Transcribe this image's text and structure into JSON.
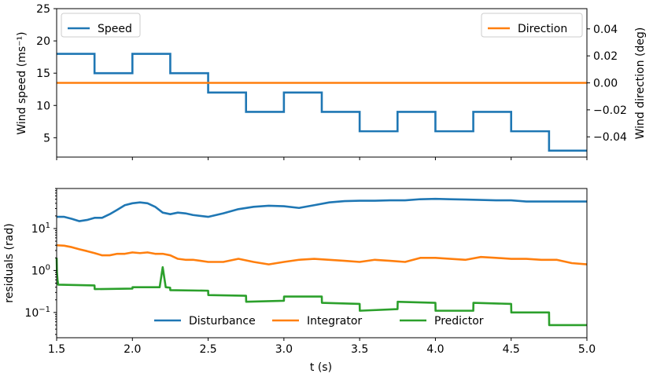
{
  "colors": {
    "blue": "#1f77b4",
    "orange": "#ff7f0e",
    "green": "#2ca02c",
    "axes": "#000000",
    "background": "#ffffff"
  },
  "chart_data": [
    {
      "type": "line",
      "title": "",
      "xlabel": "",
      "ylabel": "Wind speed (ms⁻¹)",
      "y2label": "Wind direction (deg)",
      "xlim": [
        1.5,
        5.0
      ],
      "ylim": [
        2,
        25
      ],
      "y2lim": [
        -0.055,
        0.055
      ],
      "grid": false,
      "xticks": [
        1.5,
        2.0,
        2.5,
        3.0,
        3.5,
        4.0,
        4.5,
        5.0
      ],
      "yticks": [
        5,
        10,
        15,
        20,
        25
      ],
      "y2ticks": [
        -0.04,
        -0.02,
        0.0,
        0.02,
        0.04
      ],
      "ytick_labels": [
        "5",
        "10",
        "15",
        "20",
        "25"
      ],
      "y2tick_labels": [
        "−0.04",
        "−0.02",
        "0.00",
        "0.02",
        "0.04"
      ],
      "legend_left": {
        "placement": "upper left",
        "entries": [
          "Speed"
        ]
      },
      "legend_right": {
        "placement": "upper right",
        "entries": [
          "Direction"
        ]
      },
      "series": [
        {
          "name": "Speed",
          "axis": "left",
          "color": "#1f77b4",
          "shape": "steps",
          "x": [
            1.5,
            1.75,
            2.0,
            2.25,
            2.5,
            2.75,
            3.0,
            3.25,
            3.5,
            3.75,
            4.0,
            4.25,
            4.5,
            4.75,
            5.0
          ],
          "values": [
            18,
            15,
            18,
            15,
            12,
            9,
            12,
            9,
            6,
            9,
            6,
            9,
            6,
            3,
            3
          ]
        },
        {
          "name": "Direction",
          "axis": "right",
          "color": "#ff7f0e",
          "x": [
            1.5,
            5.0
          ],
          "values": [
            0.0,
            0.0
          ]
        }
      ]
    },
    {
      "type": "line",
      "title": "",
      "xlabel": "t (s)",
      "ylabel": "residuals (rad)",
      "yscale": "log",
      "xlim": [
        1.5,
        5.0
      ],
      "ylim": [
        0.025,
        90
      ],
      "grid": false,
      "xticks": [
        1.5,
        2.0,
        2.5,
        3.0,
        3.5,
        4.0,
        4.5,
        5.0
      ],
      "xtick_labels": [
        "1.5",
        "2.0",
        "2.5",
        "3.0",
        "3.5",
        "4.0",
        "4.5",
        "5.0"
      ],
      "yticks": [
        0.1,
        1,
        10
      ],
      "ytick_labels": [
        {
          "base": "10",
          "exp": "−1"
        },
        {
          "base": "10",
          "exp": "0"
        },
        {
          "base": "10",
          "exp": "1"
        }
      ],
      "legend": {
        "placement": "lower center",
        "ncol": 3,
        "entries": [
          "Disturbance",
          "Integrator",
          "Predictor"
        ]
      },
      "series": [
        {
          "name": "Disturbance",
          "color": "#1f77b4",
          "x": [
            1.5,
            1.55,
            1.6,
            1.65,
            1.7,
            1.75,
            1.8,
            1.85,
            1.9,
            1.95,
            2.0,
            2.05,
            2.1,
            2.15,
            2.2,
            2.25,
            2.3,
            2.35,
            2.4,
            2.5,
            2.6,
            2.7,
            2.8,
            2.9,
            3.0,
            3.1,
            3.2,
            3.3,
            3.4,
            3.5,
            3.6,
            3.7,
            3.8,
            3.9,
            4.0,
            4.1,
            4.2,
            4.3,
            4.4,
            4.5,
            4.6,
            4.7,
            4.8,
            4.9,
            5.0
          ],
          "values": [
            19,
            19,
            17,
            15,
            16,
            18,
            18,
            22,
            28,
            36,
            40,
            42,
            40,
            33,
            24,
            22,
            24,
            23,
            21,
            19,
            23,
            29,
            33,
            35,
            34,
            31,
            36,
            42,
            45,
            46,
            46,
            47,
            47,
            50,
            51,
            50,
            49,
            48,
            47,
            47,
            44,
            44,
            44,
            44,
            44
          ]
        },
        {
          "name": "Integrator",
          "color": "#ff7f0e",
          "x": [
            1.5,
            1.55,
            1.6,
            1.65,
            1.7,
            1.75,
            1.8,
            1.85,
            1.9,
            1.95,
            2.0,
            2.05,
            2.1,
            2.15,
            2.2,
            2.25,
            2.3,
            2.35,
            2.4,
            2.45,
            2.5,
            2.6,
            2.7,
            2.8,
            2.9,
            3.0,
            3.1,
            3.2,
            3.3,
            3.4,
            3.5,
            3.6,
            3.7,
            3.8,
            3.9,
            4.0,
            4.1,
            4.2,
            4.3,
            4.4,
            4.5,
            4.6,
            4.7,
            4.8,
            4.9,
            5.0
          ],
          "values": [
            4.0,
            3.9,
            3.6,
            3.2,
            2.9,
            2.6,
            2.3,
            2.3,
            2.5,
            2.5,
            2.7,
            2.6,
            2.7,
            2.5,
            2.5,
            2.3,
            1.9,
            1.8,
            1.8,
            1.7,
            1.6,
            1.6,
            1.9,
            1.6,
            1.4,
            1.6,
            1.8,
            1.9,
            1.8,
            1.7,
            1.6,
            1.8,
            1.7,
            1.6,
            2.0,
            2.0,
            1.9,
            1.8,
            2.1,
            2.0,
            1.9,
            1.9,
            1.8,
            1.8,
            1.5,
            1.4
          ]
        },
        {
          "name": "Predictor",
          "color": "#2ca02c",
          "x": [
            1.5,
            1.502,
            1.506,
            1.51,
            1.75,
            1.751,
            2.0,
            2.001,
            2.18,
            2.2,
            2.22,
            2.249,
            2.25,
            2.5,
            2.501,
            2.75,
            2.751,
            3.0,
            3.001,
            3.25,
            3.251,
            3.5,
            3.501,
            3.75,
            3.751,
            4.0,
            4.001,
            4.25,
            4.251,
            4.5,
            4.501,
            4.75,
            4.751,
            5.0
          ],
          "values": [
            2.0,
            0.9,
            0.6,
            0.46,
            0.44,
            0.36,
            0.37,
            0.4,
            0.4,
            1.2,
            0.4,
            0.39,
            0.34,
            0.33,
            0.26,
            0.25,
            0.18,
            0.19,
            0.24,
            0.24,
            0.17,
            0.16,
            0.11,
            0.12,
            0.18,
            0.17,
            0.11,
            0.11,
            0.17,
            0.16,
            0.1,
            0.1,
            0.05,
            0.05
          ]
        }
      ]
    }
  ]
}
